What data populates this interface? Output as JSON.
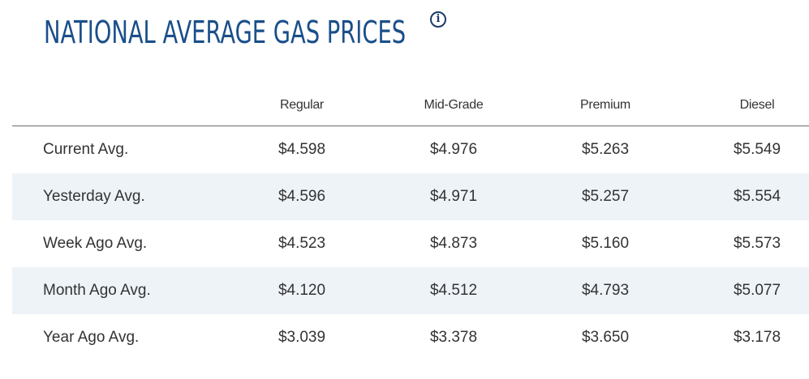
{
  "title": "NATIONAL AVERAGE GAS PRICES",
  "info_icon": {
    "icon": "info-icon",
    "glyph": "i"
  },
  "colors": {
    "title": "#1a4f8a",
    "text": "#333333",
    "alt_row_bg": "#eef3f8",
    "divider": "#6b6b6b"
  },
  "table": {
    "headers": [
      "Regular",
      "Mid-Grade",
      "Premium",
      "Diesel"
    ],
    "rows": [
      {
        "label": "Current Avg.",
        "values": [
          "$4.598",
          "$4.976",
          "$5.263",
          "$5.549"
        ]
      },
      {
        "label": "Yesterday Avg.",
        "values": [
          "$4.596",
          "$4.971",
          "$5.257",
          "$5.554"
        ]
      },
      {
        "label": "Week Ago Avg.",
        "values": [
          "$4.523",
          "$4.873",
          "$5.160",
          "$5.573"
        ]
      },
      {
        "label": "Month Ago Avg.",
        "values": [
          "$4.120",
          "$4.512",
          "$4.793",
          "$5.077"
        ]
      },
      {
        "label": "Year Ago Avg.",
        "values": [
          "$3.039",
          "$3.378",
          "$3.650",
          "$3.178"
        ]
      }
    ]
  }
}
